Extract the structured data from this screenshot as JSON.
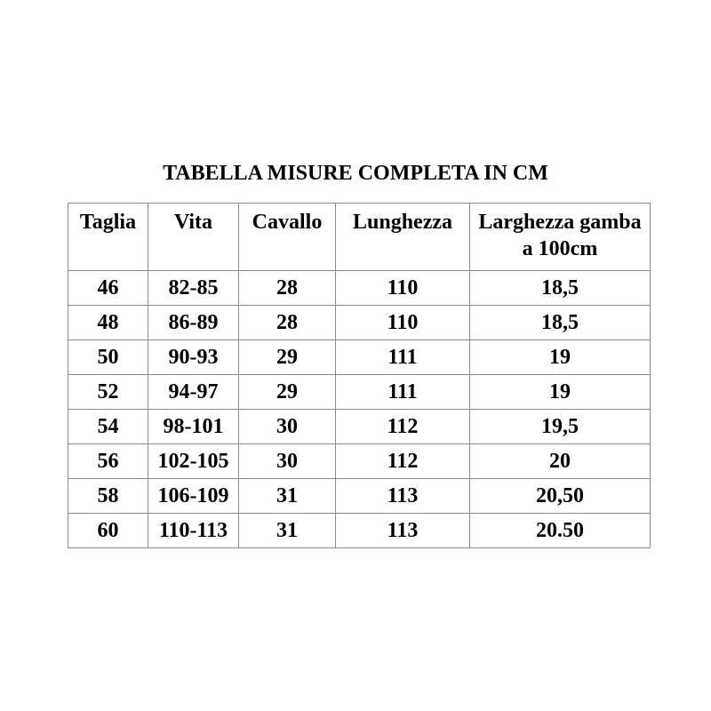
{
  "title": "TABELLA MISURE COMPLETA IN CM",
  "headers": [
    "Taglia",
    "Vita",
    "Cavallo",
    "Lunghezza",
    "Larghezza gamba a 100cm"
  ],
  "rows": [
    [
      "46",
      "82-85",
      "28",
      "110",
      "18,5"
    ],
    [
      "48",
      "86-89",
      "28",
      "110",
      "18,5"
    ],
    [
      "50",
      "90-93",
      "29",
      "111",
      "19"
    ],
    [
      "52",
      "94-97",
      "29",
      "111",
      "19"
    ],
    [
      "54",
      "98-101",
      "30",
      "112",
      "19,5"
    ],
    [
      "56",
      "102-105",
      "30",
      "112",
      "20"
    ],
    [
      "58",
      "106-109",
      "31",
      "113",
      "20,50"
    ],
    [
      "60",
      "110-113",
      "31",
      "113",
      "20.50"
    ]
  ]
}
